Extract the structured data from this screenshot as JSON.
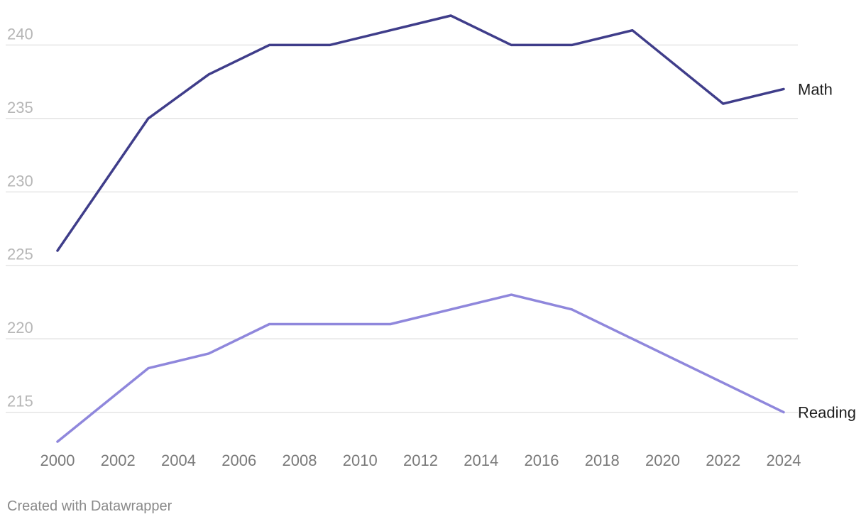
{
  "chart_data": {
    "type": "line",
    "title": "",
    "xlabel": "",
    "ylabel": "",
    "grid": true,
    "xlim": [
      2000,
      2024
    ],
    "ylim": [
      213,
      242
    ],
    "x_ticks": [
      2000,
      2002,
      2004,
      2006,
      2008,
      2010,
      2012,
      2014,
      2016,
      2018,
      2020,
      2022,
      2024
    ],
    "y_ticks": [
      215,
      220,
      225,
      230,
      235,
      240
    ],
    "series": [
      {
        "name": "Math",
        "color": "#3f3d8a",
        "x": [
          2000,
          2003,
          2005,
          2007,
          2009,
          2011,
          2013,
          2015,
          2017,
          2019,
          2022,
          2024
        ],
        "values": [
          226,
          235,
          238,
          240,
          240,
          241,
          242,
          240,
          240,
          241,
          236,
          237
        ]
      },
      {
        "name": "Reading",
        "color": "#8f87dc",
        "x": [
          2000,
          2003,
          2005,
          2007,
          2009,
          2011,
          2013,
          2015,
          2017,
          2019,
          2022,
          2024
        ],
        "values": [
          213,
          218,
          219,
          221,
          221,
          221,
          222,
          223,
          222,
          220,
          217,
          215
        ]
      }
    ]
  },
  "footer": {
    "credit": "Created with Datawrapper"
  }
}
